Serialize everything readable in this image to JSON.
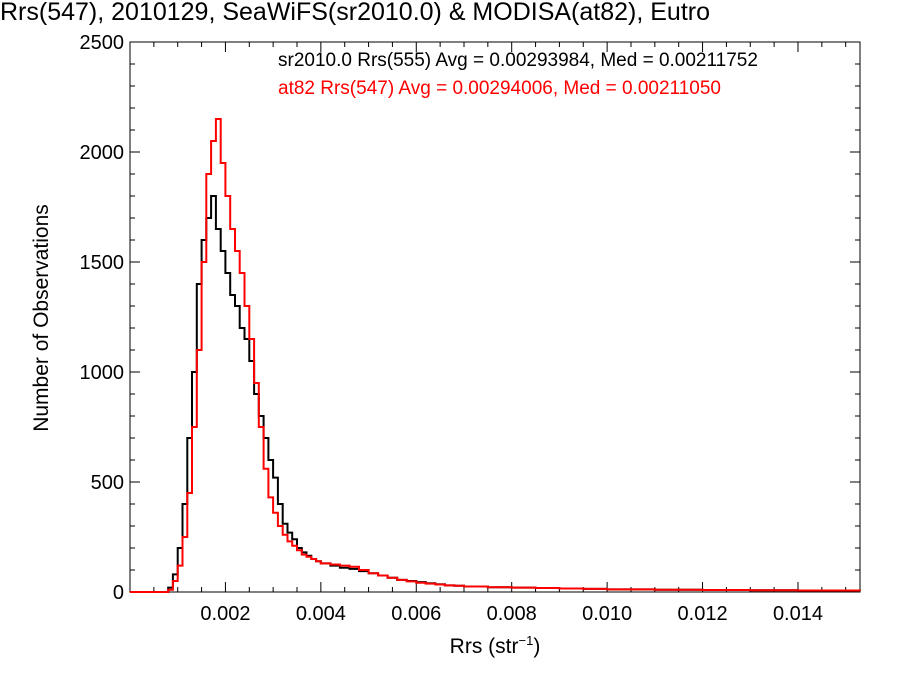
{
  "chart_data": {
    "type": "line",
    "title": "Rrs(547), 2010129, SeaWiFS(sr2010.0) & MODISA(at82), Eutro",
    "xlabel": "Rrs (str",
    "xlabel_sup": "−1",
    "xlabel_tail": ")",
    "ylabel": "Number of Observations",
    "xlim": [
      0.0,
      0.0153
    ],
    "ylim": [
      0,
      2500
    ],
    "x_ticks": [
      0.002,
      0.004,
      0.006,
      0.008,
      0.01,
      0.012,
      0.014
    ],
    "x_tick_labels": [
      "0.002",
      "0.004",
      "0.006",
      "0.008",
      "0.010",
      "0.012",
      "0.014"
    ],
    "y_ticks": [
      0,
      500,
      1000,
      1500,
      2000,
      2500
    ],
    "y_tick_labels": [
      "0",
      "500",
      "1000",
      "1500",
      "2000",
      "2500"
    ],
    "grid": false,
    "legend_placement": "top",
    "series": [
      {
        "name": "sr2010.0 Rrs(555) Avg = 0.00293984, Med = 0.00211752",
        "color": "#000000",
        "x": [
          0.0,
          0.0007,
          0.0008,
          0.0009,
          0.001,
          0.0011,
          0.0012,
          0.0013,
          0.0014,
          0.0015,
          0.0016,
          0.0017,
          0.0018,
          0.0019,
          0.002,
          0.0021,
          0.0022,
          0.0023,
          0.0024,
          0.0025,
          0.0026,
          0.0027,
          0.0028,
          0.0029,
          0.003,
          0.0031,
          0.0032,
          0.0033,
          0.0034,
          0.0035,
          0.0036,
          0.0037,
          0.0038,
          0.0039,
          0.004,
          0.0042,
          0.0044,
          0.0046,
          0.0048,
          0.005,
          0.0052,
          0.0054,
          0.0056,
          0.0058,
          0.006,
          0.0062,
          0.0064,
          0.0066,
          0.0068,
          0.007,
          0.0075,
          0.008,
          0.0085,
          0.009,
          0.0095,
          0.01,
          0.011,
          0.012,
          0.013,
          0.014,
          0.0153
        ],
        "y": [
          0,
          0,
          20,
          80,
          200,
          400,
          700,
          1000,
          1400,
          1600,
          1700,
          1800,
          1650,
          1550,
          1450,
          1350,
          1300,
          1200,
          1150,
          1050,
          900,
          800,
          700,
          600,
          520,
          400,
          310,
          270,
          240,
          200,
          180,
          165,
          150,
          140,
          130,
          120,
          110,
          105,
          95,
          85,
          75,
          65,
          55,
          50,
          45,
          40,
          35,
          30,
          28,
          25,
          22,
          20,
          18,
          16,
          14,
          12,
          10,
          9,
          8,
          7,
          6
        ]
      },
      {
        "name": "at82 Rrs(547) Avg = 0.00294006, Med = 0.00211050",
        "color": "#ff0000",
        "x": [
          0.0,
          0.0007,
          0.0008,
          0.0009,
          0.001,
          0.0011,
          0.0012,
          0.0013,
          0.0014,
          0.0015,
          0.0016,
          0.0017,
          0.0018,
          0.0019,
          0.002,
          0.0021,
          0.0022,
          0.0023,
          0.0024,
          0.0025,
          0.0026,
          0.0027,
          0.0028,
          0.0029,
          0.003,
          0.0031,
          0.0032,
          0.0033,
          0.0034,
          0.0035,
          0.0036,
          0.0037,
          0.0038,
          0.0039,
          0.004,
          0.0042,
          0.0044,
          0.0046,
          0.0048,
          0.005,
          0.0052,
          0.0054,
          0.0056,
          0.0058,
          0.006,
          0.0062,
          0.0064,
          0.0066,
          0.0068,
          0.007,
          0.0075,
          0.008,
          0.0085,
          0.009,
          0.0095,
          0.01,
          0.011,
          0.012,
          0.013,
          0.014,
          0.0153
        ],
        "y": [
          0,
          0,
          10,
          50,
          120,
          250,
          450,
          750,
          1100,
          1500,
          1900,
          2050,
          2150,
          1950,
          1800,
          1650,
          1550,
          1450,
          1300,
          1150,
          950,
          750,
          560,
          430,
          360,
          300,
          260,
          230,
          210,
          190,
          170,
          160,
          150,
          140,
          130,
          125,
          120,
          115,
          100,
          85,
          75,
          65,
          55,
          48,
          42,
          38,
          34,
          30,
          28,
          25,
          22,
          20,
          18,
          16,
          14,
          12,
          10,
          9,
          8,
          7,
          6
        ]
      }
    ]
  }
}
